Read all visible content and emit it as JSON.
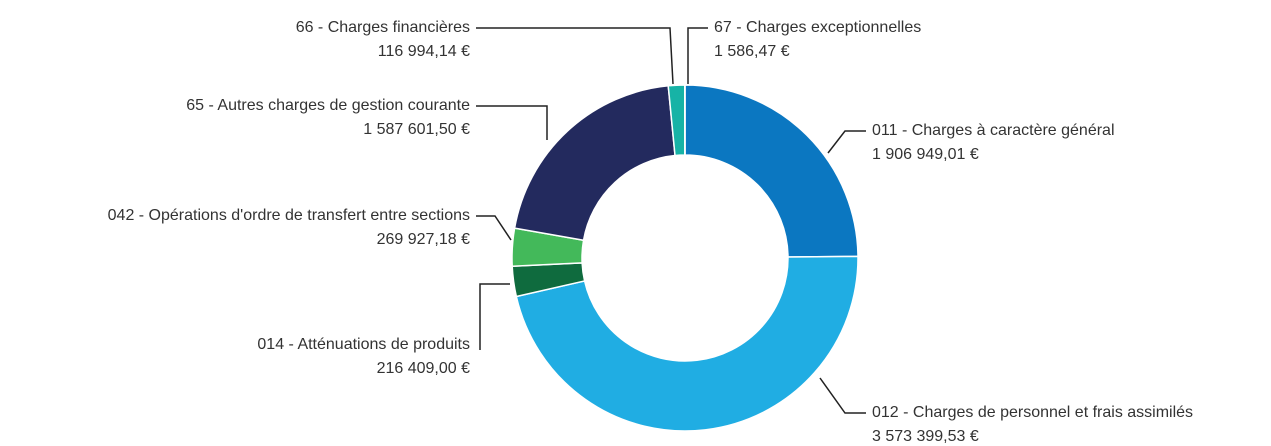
{
  "chart_data": {
    "type": "donut",
    "categories": [
      "011 - Charges à caractère général",
      "012 - Charges de personnel et frais assimilés",
      "014 - Atténuations de produits",
      "042 - Opérations d'ordre de transfert entre sections",
      "65 - Autres charges de gestion courante",
      "66 - Charges financières",
      "67 - Charges exceptionnelles"
    ],
    "values": [
      1906949.01,
      3573399.53,
      216409.0,
      269927.18,
      1587601.5,
      116994.14,
      1586.47
    ],
    "value_labels": [
      "1 906 949,01 €",
      "3 573 399,53 €",
      "216 409,00 €",
      "269 927,18 €",
      "1 587 601,50 €",
      "116 994,14 €",
      "1 586,47 €"
    ],
    "colors": [
      "#0b77c1",
      "#20ade3",
      "#0f6b3e",
      "#43b95a",
      "#232a5e",
      "#17b3a6",
      "#1a3d6e"
    ]
  }
}
